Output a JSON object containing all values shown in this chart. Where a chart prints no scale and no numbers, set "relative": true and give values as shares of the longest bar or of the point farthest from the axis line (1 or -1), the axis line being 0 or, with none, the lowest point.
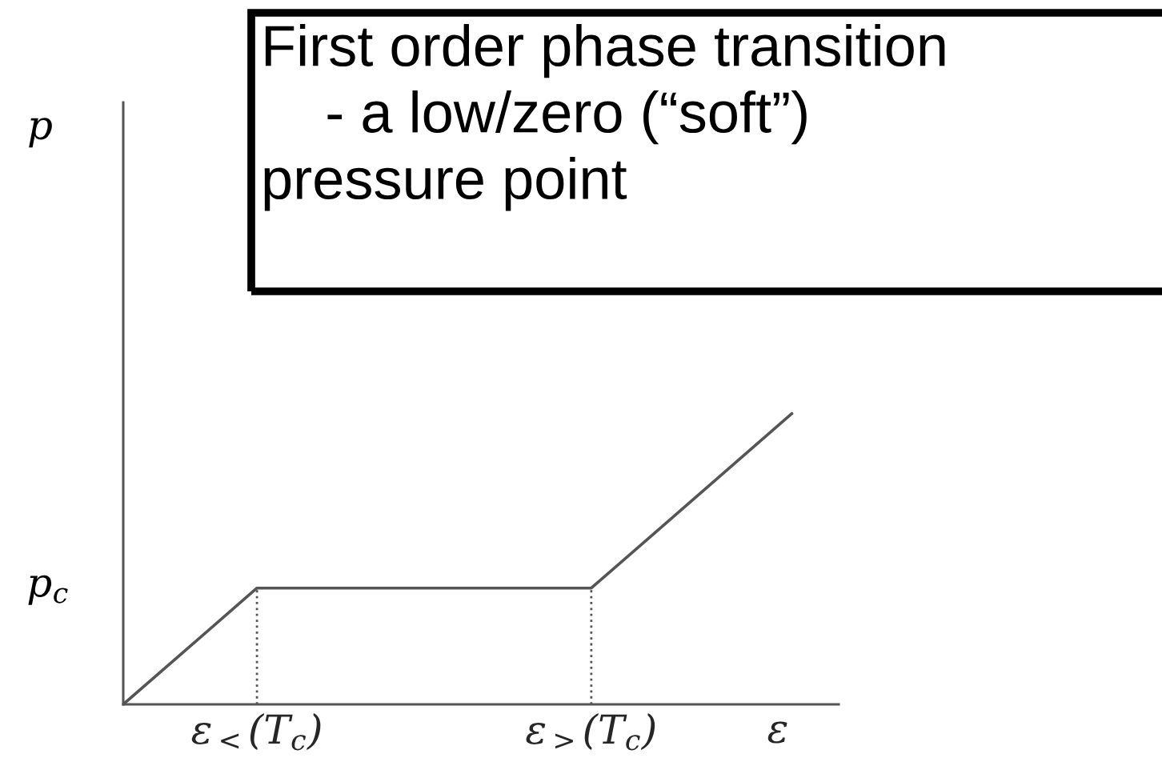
{
  "chart_data": {
    "type": "line",
    "relative": true,
    "xlabel": "ε",
    "categories": [
      null,
      null,
      "ε$_{<}$(T$_{c}$)",
      null,
      null,
      null,
      null,
      "ε$_{>}$(T$_{c}$)",
      null,
      null,
      null
    ],
    "series": [
      {
        "color": "#555555",
        "values": [
          0,
          0.2,
          0.4,
          0.4,
          0.4,
          0.4,
          0.4,
          0.4,
          0.6,
          0.8,
          1
        ]
      }
    ],
    "ref_lines": [
      {
        "axis": "x",
        "value": "ε$_{<}$(T$_{c}$)",
        "line_style": "dotted",
        "color": "#555555"
      },
      {
        "axis": "x",
        "value": "ε$_{>}$(T$_{c}$)",
        "line_style": "dotted",
        "color": "#555555"
      }
    ],
    "annotations": [
      "First order phase transition\n    - a low/zero (“soft”)\npressure point",
      "p$_{c}$",
      "p"
    ]
  }
}
